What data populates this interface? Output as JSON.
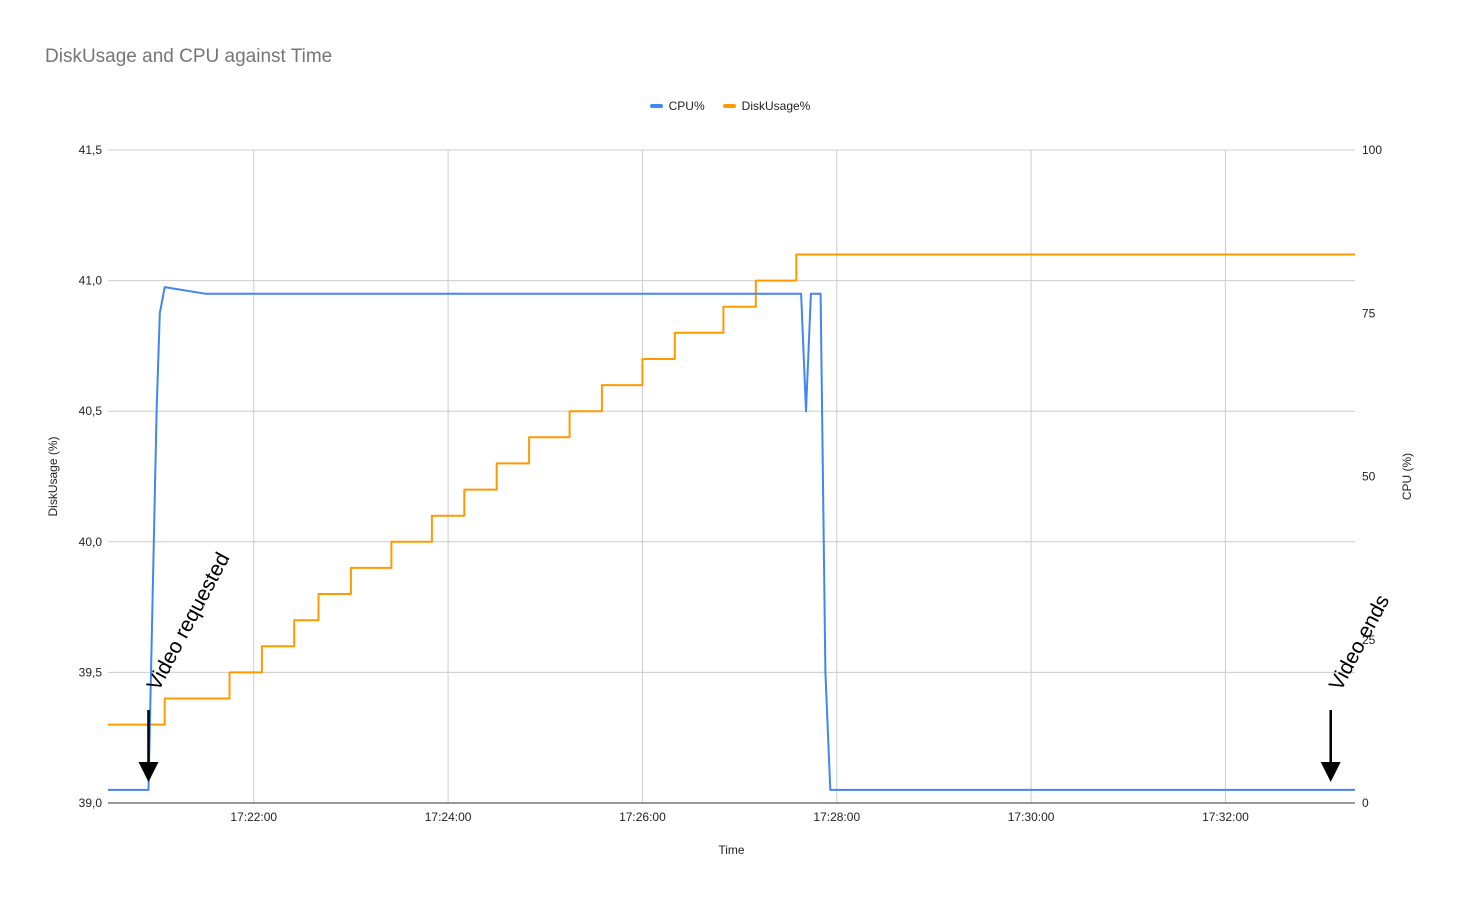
{
  "chart_data": {
    "type": "line",
    "title": "DiskUsage and CPU against Time",
    "xlabel": "Time",
    "ylabel_left": "DiskUsage (%)",
    "ylabel_right": "CPU (%)",
    "x_range": [
      "17:20:30",
      "17:33:20"
    ],
    "x_ticks": [
      "17:22:00",
      "17:24:00",
      "17:26:00",
      "17:28:00",
      "17:30:00",
      "17:32:00"
    ],
    "y_left_range": [
      39.0,
      41.5
    ],
    "y_left_ticks": [
      "39,0",
      "39,5",
      "40,0",
      "40,5",
      "41,0",
      "41,5"
    ],
    "y_right_range": [
      0,
      100
    ],
    "y_right_ticks": [
      "0",
      "25",
      "50",
      "75",
      "100"
    ],
    "grid": true,
    "legend_position": "top",
    "series": [
      {
        "name": "CPU%",
        "axis": "right",
        "color": "#4285f4",
        "points": [
          [
            "17:20:30",
            2
          ],
          [
            "17:20:55",
            2
          ],
          [
            "17:21:00",
            60
          ],
          [
            "17:21:02",
            75
          ],
          [
            "17:21:05",
            79
          ],
          [
            "17:21:30",
            78
          ],
          [
            "17:22:00",
            78
          ],
          [
            "17:23:00",
            78
          ],
          [
            "17:24:00",
            78
          ],
          [
            "17:25:00",
            78
          ],
          [
            "17:26:00",
            78
          ],
          [
            "17:27:00",
            78
          ],
          [
            "17:27:38",
            78
          ],
          [
            "17:27:41",
            60
          ],
          [
            "17:27:44",
            78
          ],
          [
            "17:27:50",
            78
          ],
          [
            "17:27:53",
            20
          ],
          [
            "17:27:56",
            2
          ],
          [
            "17:30:00",
            2
          ],
          [
            "17:32:00",
            2
          ],
          [
            "17:33:20",
            2
          ]
        ]
      },
      {
        "name": "DiskUsage%",
        "axis": "left",
        "color": "#ff9900",
        "points": [
          [
            "17:20:30",
            39.3
          ],
          [
            "17:21:05",
            39.3
          ],
          [
            "17:21:05",
            39.4
          ],
          [
            "17:21:45",
            39.4
          ],
          [
            "17:21:45",
            39.5
          ],
          [
            "17:22:05",
            39.5
          ],
          [
            "17:22:05",
            39.6
          ],
          [
            "17:22:25",
            39.6
          ],
          [
            "17:22:25",
            39.7
          ],
          [
            "17:22:40",
            39.7
          ],
          [
            "17:22:40",
            39.8
          ],
          [
            "17:23:00",
            39.8
          ],
          [
            "17:23:00",
            39.9
          ],
          [
            "17:23:25",
            39.9
          ],
          [
            "17:23:25",
            40.0
          ],
          [
            "17:23:50",
            40.0
          ],
          [
            "17:23:50",
            40.1
          ],
          [
            "17:24:10",
            40.1
          ],
          [
            "17:24:10",
            40.2
          ],
          [
            "17:24:30",
            40.2
          ],
          [
            "17:24:30",
            40.3
          ],
          [
            "17:24:50",
            40.3
          ],
          [
            "17:24:50",
            40.4
          ],
          [
            "17:25:15",
            40.4
          ],
          [
            "17:25:15",
            40.5
          ],
          [
            "17:25:35",
            40.5
          ],
          [
            "17:25:35",
            40.6
          ],
          [
            "17:26:00",
            40.6
          ],
          [
            "17:26:00",
            40.7
          ],
          [
            "17:26:20",
            40.7
          ],
          [
            "17:26:20",
            40.8
          ],
          [
            "17:26:50",
            40.8
          ],
          [
            "17:26:50",
            40.9
          ],
          [
            "17:27:10",
            40.9
          ],
          [
            "17:27:10",
            41.0
          ],
          [
            "17:27:35",
            41.0
          ],
          [
            "17:27:35",
            41.1
          ],
          [
            "17:33:20",
            41.1
          ]
        ]
      }
    ],
    "annotations": [
      {
        "text": "Video requested",
        "x": "17:20:55"
      },
      {
        "text": "Video ends",
        "x": "17:33:05"
      }
    ]
  }
}
